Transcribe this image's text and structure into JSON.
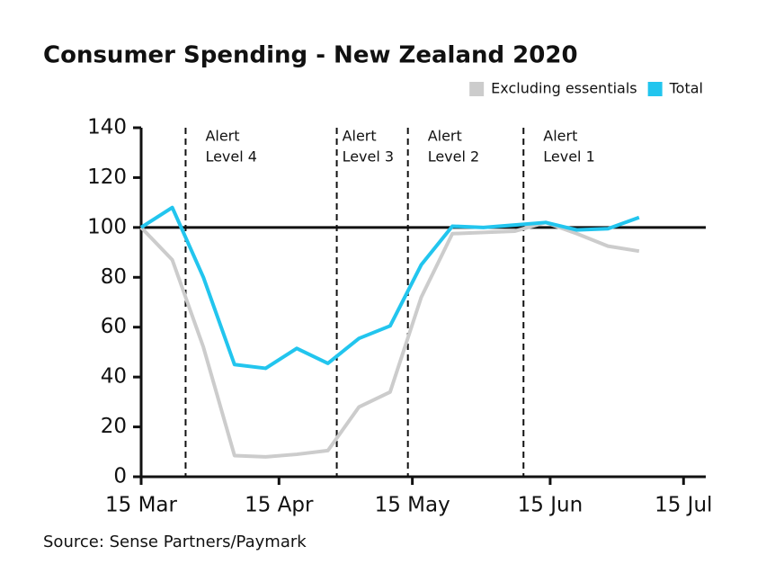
{
  "chart_data": {
    "type": "line",
    "title": "Consumer Spending - New Zealand 2020",
    "source": "Source: Sense Partners/Paymark",
    "x": [
      "15 Mar",
      "22 Mar",
      "29 Mar",
      "5 Apr",
      "12 Apr",
      "19 Apr",
      "26 Apr",
      "3 May",
      "10 May",
      "17 May",
      "24 May",
      "31 May",
      "7 Jun",
      "14 Jun",
      "21 Jun",
      "28 Jun",
      "5 Jul"
    ],
    "series": [
      {
        "name": "Excluding essentials",
        "color": "#cccccc",
        "values": [
          100,
          87,
          52,
          8.5,
          8,
          9,
          10.5,
          28,
          34,
          72,
          97.5,
          98,
          98.5,
          102,
          97.5,
          92.5,
          90.5
        ]
      },
      {
        "name": "Total",
        "color": "#22c5ee",
        "values": [
          100,
          108,
          80,
          45,
          43.5,
          51.5,
          45.5,
          55.5,
          60.5,
          85,
          100.5,
          100,
          101,
          102,
          99,
          99.5,
          104
        ]
      }
    ],
    "xlim": [
      "15 Mar",
      "20 Jul"
    ],
    "xticks": [
      "15 Mar",
      "15 Apr",
      "15 May",
      "15 Jun",
      "15 Jul"
    ],
    "ylim": [
      0,
      140
    ],
    "yticks": [
      0,
      20,
      40,
      60,
      80,
      100,
      120,
      140
    ],
    "reference_line": 100,
    "annotations": [
      {
        "x": "25 Mar",
        "label": [
          "Alert",
          "Level 4"
        ]
      },
      {
        "x": "28 Apr",
        "label": [
          "Alert",
          "Level 3"
        ]
      },
      {
        "x": "14 May",
        "label": [
          "Alert",
          "Level 2"
        ]
      },
      {
        "x": "9 Jun",
        "label": [
          "Alert",
          "Level 1"
        ]
      }
    ],
    "legend": "top-right",
    "grid": false
  }
}
